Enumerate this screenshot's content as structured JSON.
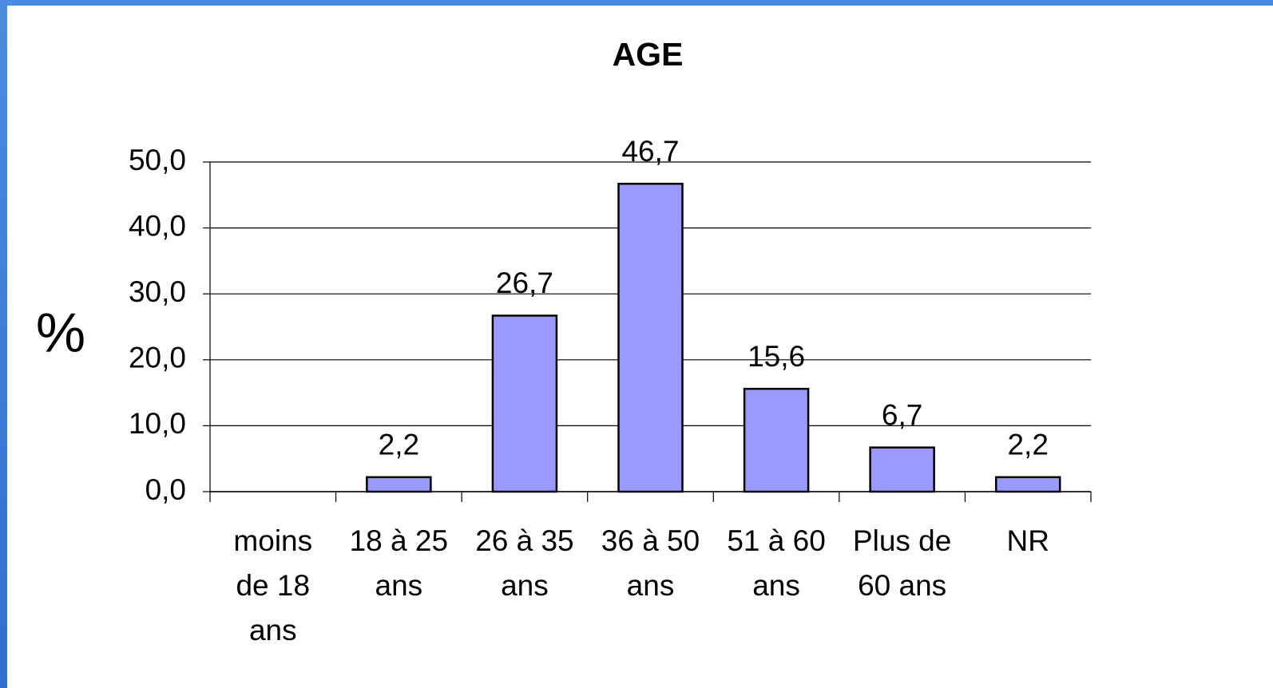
{
  "chart_data": {
    "type": "bar",
    "title": "AGE",
    "ylabel": "%",
    "categories": [
      "moins de 18 ans",
      "18 à 25 ans",
      "26 à 35 ans",
      "36 à 50 ans",
      "51 à 60 ans",
      "Plus de 60 ans",
      "NR"
    ],
    "values": [
      null,
      2.2,
      26.7,
      46.7,
      15.6,
      6.7,
      2.2
    ],
    "value_labels": [
      null,
      "2,2",
      "26,7",
      "46,7",
      "15,6",
      "6,7",
      "2,2"
    ],
    "color": "#9999ff",
    "ylim": [
      0,
      50
    ],
    "yticks": [
      {
        "value": 0,
        "label": "0,0"
      },
      {
        "value": 10,
        "label": "10,0"
      },
      {
        "value": 20,
        "label": "20,0"
      },
      {
        "value": 30,
        "label": "30,0"
      },
      {
        "value": 40,
        "label": "40,0"
      },
      {
        "value": 50,
        "label": "50,0"
      }
    ],
    "grid": true
  }
}
